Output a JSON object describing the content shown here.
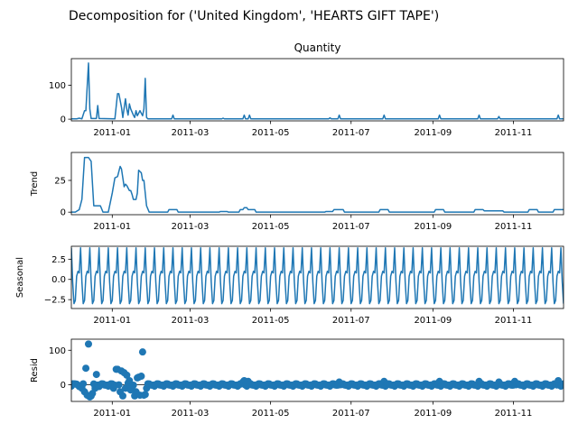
{
  "figure_title": "Decomposition for ('United Kingdom', 'HEARTS GIFT TAPE')",
  "line_color": "#1f77b4",
  "chart_data": [
    {
      "type": "line",
      "title": "Quantity",
      "ylabel": "",
      "ylim": [
        -5,
        178
      ],
      "yticks": [
        0,
        100
      ],
      "ytick_labels": [
        "0",
        "100"
      ],
      "x_range": [
        "2010-12-01",
        "2011-12-09"
      ],
      "xticks": [
        "2011-01-01",
        "2011-03-01",
        "2011-05-01",
        "2011-07-01",
        "2011-09-01",
        "2011-11-01"
      ],
      "xtick_labels": [
        "2011-01",
        "2011-03",
        "2011-05",
        "2011-07",
        "2011-09",
        "2011-11"
      ],
      "baseline": 1,
      "points": [
        [
          "2010-12-01",
          1
        ],
        [
          "2010-12-05",
          1
        ],
        [
          "2010-12-07",
          3
        ],
        [
          "2010-12-09",
          1
        ],
        [
          "2010-12-11",
          25
        ],
        [
          "2010-12-12",
          25
        ],
        [
          "2010-12-14",
          165
        ],
        [
          "2010-12-15",
          30
        ],
        [
          "2010-12-16",
          2
        ],
        [
          "2010-12-20",
          2
        ],
        [
          "2010-12-21",
          40
        ],
        [
          "2010-12-22",
          2
        ],
        [
          "2011-01-03",
          1
        ],
        [
          "2011-01-05",
          75
        ],
        [
          "2011-01-06",
          75
        ],
        [
          "2011-01-08",
          35
        ],
        [
          "2011-01-09",
          5
        ],
        [
          "2011-01-11",
          60
        ],
        [
          "2011-01-12",
          30
        ],
        [
          "2011-01-13",
          12
        ],
        [
          "2011-01-14",
          45
        ],
        [
          "2011-01-15",
          30
        ],
        [
          "2011-01-17",
          12
        ],
        [
          "2011-01-18",
          5
        ],
        [
          "2011-01-19",
          25
        ],
        [
          "2011-01-20",
          10
        ],
        [
          "2011-01-22",
          25
        ],
        [
          "2011-01-24",
          10
        ],
        [
          "2011-01-25",
          30
        ],
        [
          "2011-01-26",
          120
        ],
        [
          "2011-01-27",
          5
        ],
        [
          "2011-01-28",
          1
        ],
        [
          "2011-02-15",
          1
        ],
        [
          "2011-02-16",
          12
        ],
        [
          "2011-02-17",
          1
        ],
        [
          "2011-03-25",
          1
        ],
        [
          "2011-03-26",
          3
        ],
        [
          "2011-03-27",
          1
        ],
        [
          "2011-04-10",
          1
        ],
        [
          "2011-04-11",
          12
        ],
        [
          "2011-04-12",
          1
        ],
        [
          "2011-04-14",
          1
        ],
        [
          "2011-04-15",
          12
        ],
        [
          "2011-04-16",
          1
        ],
        [
          "2011-06-14",
          1
        ],
        [
          "2011-06-15",
          4
        ],
        [
          "2011-06-16",
          1
        ],
        [
          "2011-06-21",
          1
        ],
        [
          "2011-06-22",
          12
        ],
        [
          "2011-06-23",
          1
        ],
        [
          "2011-07-25",
          1
        ],
        [
          "2011-07-26",
          12
        ],
        [
          "2011-07-27",
          1
        ],
        [
          "2011-09-05",
          1
        ],
        [
          "2011-09-06",
          12
        ],
        [
          "2011-09-07",
          1
        ],
        [
          "2011-10-05",
          1
        ],
        [
          "2011-10-06",
          12
        ],
        [
          "2011-10-07",
          1
        ],
        [
          "2011-10-20",
          1
        ],
        [
          "2011-10-21",
          8
        ],
        [
          "2011-10-22",
          1
        ],
        [
          "2011-12-04",
          1
        ],
        [
          "2011-12-05",
          12
        ],
        [
          "2011-12-06",
          1
        ],
        [
          "2011-12-09",
          1
        ]
      ]
    },
    {
      "type": "line",
      "title": "",
      "ylabel": "Trend",
      "ylim": [
        -2,
        47
      ],
      "yticks": [
        0,
        25
      ],
      "ytick_labels": [
        "0",
        "25"
      ],
      "x_range": [
        "2010-12-01",
        "2011-12-09"
      ],
      "xticks": [
        "2011-01-01",
        "2011-03-01",
        "2011-05-01",
        "2011-07-01",
        "2011-09-01",
        "2011-11-01"
      ],
      "xtick_labels": [
        "2011-01",
        "2011-03",
        "2011-05",
        "2011-07",
        "2011-09",
        "2011-11"
      ],
      "points": [
        [
          "2010-12-01",
          0
        ],
        [
          "2010-12-04",
          0
        ],
        [
          "2010-12-07",
          2
        ],
        [
          "2010-12-09",
          10
        ],
        [
          "2010-12-11",
          43
        ],
        [
          "2010-12-14",
          43
        ],
        [
          "2010-12-16",
          40
        ],
        [
          "2010-12-18",
          5
        ],
        [
          "2010-12-20",
          5
        ],
        [
          "2010-12-23",
          5
        ],
        [
          "2010-12-25",
          0
        ],
        [
          "2010-12-29",
          0
        ],
        [
          "2011-01-01",
          15
        ],
        [
          "2011-01-03",
          27
        ],
        [
          "2011-01-05",
          28
        ],
        [
          "2011-01-07",
          36
        ],
        [
          "2011-01-08",
          34
        ],
        [
          "2011-01-09",
          27
        ],
        [
          "2011-01-10",
          20
        ],
        [
          "2011-01-11",
          22
        ],
        [
          "2011-01-12",
          21
        ],
        [
          "2011-01-14",
          17
        ],
        [
          "2011-01-15",
          17
        ],
        [
          "2011-01-16",
          14
        ],
        [
          "2011-01-17",
          10
        ],
        [
          "2011-01-18",
          10
        ],
        [
          "2011-01-19",
          10
        ],
        [
          "2011-01-20",
          15
        ],
        [
          "2011-01-21",
          33
        ],
        [
          "2011-01-22",
          32
        ],
        [
          "2011-01-23",
          31
        ],
        [
          "2011-01-24",
          25
        ],
        [
          "2011-01-25",
          25
        ],
        [
          "2011-01-27",
          5
        ],
        [
          "2011-01-29",
          0
        ],
        [
          "2011-02-12",
          0
        ],
        [
          "2011-02-13",
          2
        ],
        [
          "2011-02-19",
          2
        ],
        [
          "2011-02-20",
          0
        ],
        [
          "2011-03-23",
          0
        ],
        [
          "2011-03-24",
          0.5
        ],
        [
          "2011-03-29",
          0.5
        ],
        [
          "2011-03-30",
          0
        ],
        [
          "2011-04-07",
          0
        ],
        [
          "2011-04-08",
          2
        ],
        [
          "2011-04-10",
          2
        ],
        [
          "2011-04-11",
          3.5
        ],
        [
          "2011-04-13",
          3.5
        ],
        [
          "2011-04-14",
          2
        ],
        [
          "2011-04-19",
          2
        ],
        [
          "2011-04-20",
          0
        ],
        [
          "2011-06-11",
          0
        ],
        [
          "2011-06-12",
          0.5
        ],
        [
          "2011-06-17",
          0.5
        ],
        [
          "2011-06-18",
          2
        ],
        [
          "2011-06-25",
          2
        ],
        [
          "2011-06-26",
          0
        ],
        [
          "2011-07-22",
          0
        ],
        [
          "2011-07-23",
          2
        ],
        [
          "2011-07-29",
          2
        ],
        [
          "2011-07-30",
          0
        ],
        [
          "2011-09-02",
          0
        ],
        [
          "2011-09-03",
          2
        ],
        [
          "2011-09-09",
          2
        ],
        [
          "2011-09-10",
          0
        ],
        [
          "2011-10-02",
          0
        ],
        [
          "2011-10-03",
          2
        ],
        [
          "2011-10-09",
          2
        ],
        [
          "2011-10-10",
          1
        ],
        [
          "2011-10-17",
          1
        ],
        [
          "2011-10-18",
          1
        ],
        [
          "2011-10-24",
          1
        ],
        [
          "2011-10-25",
          0
        ],
        [
          "2011-11-12",
          0
        ],
        [
          "2011-11-13",
          2
        ],
        [
          "2011-11-19",
          2
        ],
        [
          "2011-11-20",
          0
        ],
        [
          "2011-12-01",
          0
        ],
        [
          "2011-12-02",
          2
        ],
        [
          "2011-12-09",
          2
        ]
      ]
    },
    {
      "type": "line",
      "title": "",
      "ylabel": "Seasonal",
      "ylim": [
        -3.6,
        4.1
      ],
      "yticks": [
        -2.5,
        0.0,
        2.5
      ],
      "ytick_labels": [
        "−2.5",
        "0.0",
        "2.5"
      ],
      "x_range": [
        "2010-12-01",
        "2011-12-09"
      ],
      "xticks": [
        "2011-01-01",
        "2011-03-01",
        "2011-05-01",
        "2011-07-01",
        "2011-09-01",
        "2011-11-01"
      ],
      "xtick_labels": [
        "2011-01",
        "2011-03",
        "2011-05",
        "2011-07",
        "2011-09",
        "2011-11"
      ],
      "period_days": 7,
      "pattern": [
        3.9,
        -0.3,
        -3.0,
        -2.6,
        0.4,
        1.0,
        0.8
      ]
    },
    {
      "type": "scatter",
      "title": "",
      "ylabel": "Resid",
      "ylim": [
        -48,
        132
      ],
      "yticks": [
        0,
        100
      ],
      "ytick_labels": [
        "0",
        "100"
      ],
      "x_range": [
        "2010-12-01",
        "2011-12-09"
      ],
      "xticks": [
        "2011-01-01",
        "2011-03-01",
        "2011-05-01",
        "2011-07-01",
        "2011-09-01",
        "2011-11-01"
      ],
      "xtick_labels": [
        "2011-01",
        "2011-03",
        "2011-05",
        "2011-07",
        "2011-09",
        "2011-11"
      ],
      "base_pattern": [
        -3.9,
        0.3,
        3.0,
        2.6,
        -0.4,
        -1.0,
        -0.8
      ],
      "outliers": [
        [
          "2010-12-02",
          3
        ],
        [
          "2010-12-05",
          2
        ],
        [
          "2010-12-07",
          -5
        ],
        [
          "2010-12-09",
          -10
        ],
        [
          "2010-12-11",
          -20
        ],
        [
          "2010-12-12",
          48
        ],
        [
          "2010-12-13",
          -30
        ],
        [
          "2010-12-14",
          118
        ],
        [
          "2010-12-15",
          -35
        ],
        [
          "2010-12-16",
          -32
        ],
        [
          "2010-12-17",
          -25
        ],
        [
          "2010-12-19",
          -10
        ],
        [
          "2010-12-20",
          30
        ],
        [
          "2010-12-22",
          -5
        ],
        [
          "2011-01-02",
          -10
        ],
        [
          "2011-01-04",
          45
        ],
        [
          "2011-01-05",
          45
        ],
        [
          "2011-01-06",
          0
        ],
        [
          "2011-01-07",
          -20
        ],
        [
          "2011-01-08",
          40
        ],
        [
          "2011-01-09",
          -32
        ],
        [
          "2011-01-10",
          35
        ],
        [
          "2011-01-11",
          -10
        ],
        [
          "2011-01-12",
          28
        ],
        [
          "2011-01-13",
          5
        ],
        [
          "2011-01-14",
          12
        ],
        [
          "2011-01-15",
          -15
        ],
        [
          "2011-01-16",
          -5
        ],
        [
          "2011-01-18",
          -32
        ],
        [
          "2011-01-19",
          -20
        ],
        [
          "2011-01-20",
          20
        ],
        [
          "2011-01-21",
          22
        ],
        [
          "2011-01-22",
          -30
        ],
        [
          "2011-01-23",
          25
        ],
        [
          "2011-01-24",
          95
        ],
        [
          "2011-01-25",
          -30
        ],
        [
          "2011-01-26",
          -28
        ],
        [
          "2011-01-27",
          -10
        ],
        [
          "2011-04-10",
          8
        ],
        [
          "2011-04-11",
          12
        ],
        [
          "2011-04-14",
          10
        ],
        [
          "2011-06-22",
          8
        ],
        [
          "2011-07-26",
          10
        ],
        [
          "2011-09-06",
          10
        ],
        [
          "2011-10-06",
          10
        ],
        [
          "2011-10-21",
          8
        ],
        [
          "2011-11-02",
          10
        ],
        [
          "2011-12-05",
          12
        ]
      ]
    }
  ]
}
